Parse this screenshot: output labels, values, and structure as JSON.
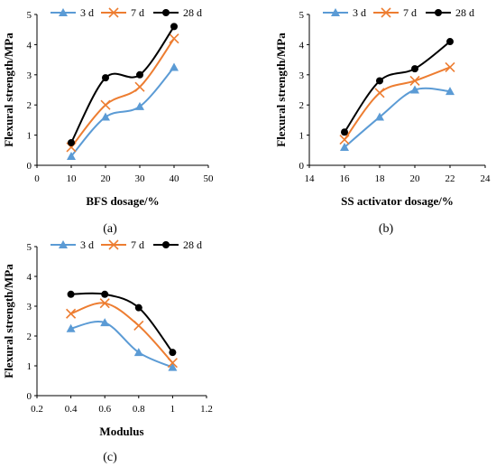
{
  "chart_data": [
    {
      "type": "line",
      "panel_label": "(a)",
      "xlabel": "BFS dosage/%",
      "ylabel": "Flexural strength/MPa",
      "xlim": [
        0,
        50
      ],
      "ylim": [
        0,
        5
      ],
      "xticks": [
        0,
        10,
        20,
        30,
        40,
        50
      ],
      "yticks": [
        0,
        1,
        2,
        3,
        4,
        5
      ],
      "x": [
        10,
        20,
        30,
        40
      ],
      "legend": "top-left",
      "grid": false,
      "series": [
        {
          "name": "3 d",
          "color": "#5B9BD5",
          "marker": "triangle",
          "values": [
            0.3,
            1.6,
            1.95,
            3.25
          ]
        },
        {
          "name": "7 d",
          "color": "#ED7D31",
          "marker": "x",
          "values": [
            0.6,
            2.0,
            2.6,
            4.2
          ]
        },
        {
          "name": "28 d",
          "color": "#000000",
          "marker": "circle",
          "values": [
            0.75,
            2.9,
            3.0,
            4.6
          ]
        }
      ]
    },
    {
      "type": "line",
      "panel_label": "(b)",
      "xlabel": "SS activator dosage/%",
      "ylabel": "Flexural strength/MPa",
      "xlim": [
        14,
        24
      ],
      "ylim": [
        0,
        5
      ],
      "xticks": [
        14,
        16,
        18,
        20,
        22,
        24
      ],
      "yticks": [
        0,
        1,
        2,
        3,
        4,
        5
      ],
      "x": [
        16,
        18,
        20,
        22
      ],
      "legend": "top-left",
      "grid": false,
      "series": [
        {
          "name": "3 d",
          "color": "#5B9BD5",
          "marker": "triangle",
          "values": [
            0.6,
            1.6,
            2.5,
            2.45
          ]
        },
        {
          "name": "7 d",
          "color": "#ED7D31",
          "marker": "x",
          "values": [
            0.85,
            2.4,
            2.8,
            3.25
          ]
        },
        {
          "name": "28 d",
          "color": "#000000",
          "marker": "circle",
          "values": [
            1.1,
            2.8,
            3.2,
            4.1
          ]
        }
      ]
    },
    {
      "type": "line",
      "panel_label": "(c)",
      "xlabel": "Modulus",
      "ylabel": "Flexural strength/MPa",
      "xlim": [
        0.2,
        1.2
      ],
      "ylim": [
        0,
        5
      ],
      "xticks": [
        0.2,
        0.4,
        0.6,
        0.8,
        1,
        1.2
      ],
      "yticks": [
        0,
        1,
        2,
        3,
        4,
        5
      ],
      "x": [
        0.4,
        0.6,
        0.8,
        1.0
      ],
      "legend": "top-left",
      "grid": false,
      "series": [
        {
          "name": "3 d",
          "color": "#5B9BD5",
          "marker": "triangle",
          "values": [
            2.25,
            2.45,
            1.45,
            0.95
          ]
        },
        {
          "name": "7 d",
          "color": "#ED7D31",
          "marker": "x",
          "values": [
            2.75,
            3.1,
            2.35,
            1.1
          ]
        },
        {
          "name": "28 d",
          "color": "#000000",
          "marker": "circle",
          "values": [
            3.4,
            3.4,
            2.95,
            1.45
          ]
        }
      ]
    }
  ]
}
